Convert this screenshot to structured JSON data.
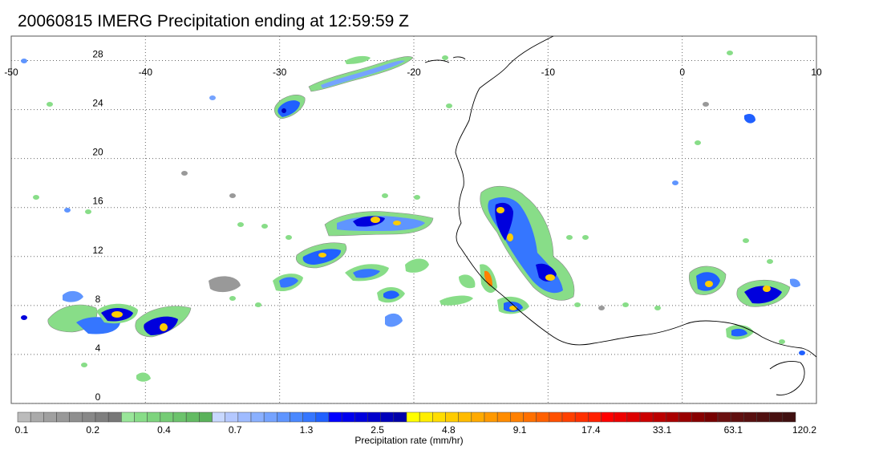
{
  "title": "20060815 IMERG Precipitation ending at 12:59:59 Z",
  "map": {
    "lon_range": [
      -50,
      10
    ],
    "lat_range": [
      0,
      30
    ],
    "lon_ticks": [
      "-50",
      "-40",
      "-30",
      "-20",
      "-10",
      "0",
      "10"
    ],
    "lat_ticks": [
      "28",
      "24",
      "20",
      "16",
      "12",
      "8",
      "4",
      "0"
    ],
    "gridlines": "dotted",
    "coastline_color": "#000000"
  },
  "colorbar": {
    "label": "Precipitation rate (mm/hr)",
    "tick_labels": [
      "0.1",
      "0.2",
      "0.4",
      "0.7",
      "1.3",
      "2.5",
      "4.8",
      "9.1",
      "17.4",
      "33.1",
      "63.1",
      "120.2"
    ],
    "colors": [
      "#bbbbbb",
      "#aaaaaa",
      "#a0a0a0",
      "#999999",
      "#8f8f8f",
      "#888888",
      "#7f7f7f",
      "#777777",
      "#99e699",
      "#88dd88",
      "#7ed47e",
      "#75cc75",
      "#6cc36c",
      "#63bb63",
      "#5ab25a",
      "#c8d8ff",
      "#b4c8ff",
      "#9fbbff",
      "#8ab0ff",
      "#75a3ff",
      "#5f95ff",
      "#4a88ff",
      "#3576ff",
      "#2060ff",
      "#0000ff",
      "#0000ee",
      "#0000dd",
      "#0000cc",
      "#0000bb",
      "#0000aa",
      "#ffff00",
      "#ffee00",
      "#ffdd00",
      "#ffcc00",
      "#ffbb00",
      "#ffaa00",
      "#ff9900",
      "#ff8c00",
      "#ff8000",
      "#ff7000",
      "#ff6000",
      "#ff5000",
      "#ff4000",
      "#ff3000",
      "#ff2000",
      "#ff0000",
      "#ee0000",
      "#dd0000",
      "#cc0000",
      "#bb0000",
      "#aa0000",
      "#990000",
      "#880000",
      "#770000",
      "#6a1010",
      "#601010",
      "#581010",
      "#501010",
      "#481010",
      "#401010"
    ]
  }
}
